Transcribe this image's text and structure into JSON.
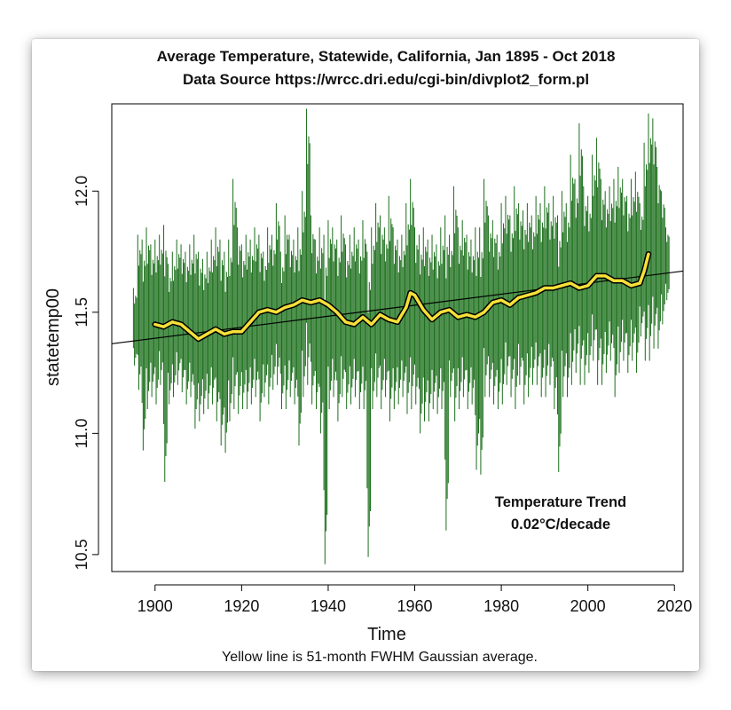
{
  "chart_data": {
    "type": "line",
    "title": "Average Temperature, Statewide, California, Jan 1895 - Oct 2018",
    "subtitle": "Data Source https://wrcc.dri.edu/cgi-bin/divplot2_form.pl",
    "xlabel": "Time",
    "ylabel": "statetemp00",
    "caption": "Yellow line is 51-month FWHM Gaussian average.",
    "xlim": [
      1890,
      2022
    ],
    "ylim": [
      10.43,
      12.36
    ],
    "x_ticks": [
      1900,
      1920,
      1940,
      1960,
      1980,
      2000,
      2020
    ],
    "x_tick_labels": [
      "1900",
      "1920",
      "1940",
      "1960",
      "1980",
      "2000",
      "2020"
    ],
    "y_ticks": [
      10.5,
      11.0,
      11.5,
      12.0
    ],
    "y_tick_labels": [
      "10.5",
      "11.0",
      "11.5",
      "12.0"
    ],
    "annotation": {
      "line1": "Temperature Trend",
      "line2": "0.02°C/decade",
      "position": "bottom-right"
    },
    "series": [
      {
        "name": "Monthly statewide temperature (range per year)",
        "color": "#1a6e1a",
        "x": [
          1895,
          1896,
          1897,
          1898,
          1899,
          1900,
          1901,
          1902,
          1903,
          1904,
          1905,
          1906,
          1907,
          1908,
          1909,
          1910,
          1911,
          1912,
          1913,
          1914,
          1915,
          1916,
          1917,
          1918,
          1919,
          1920,
          1921,
          1922,
          1923,
          1924,
          1925,
          1926,
          1927,
          1928,
          1929,
          1930,
          1931,
          1932,
          1933,
          1934,
          1935,
          1936,
          1937,
          1938,
          1939,
          1940,
          1941,
          1942,
          1943,
          1944,
          1945,
          1946,
          1947,
          1948,
          1949,
          1950,
          1951,
          1952,
          1953,
          1954,
          1955,
          1956,
          1957,
          1958,
          1959,
          1960,
          1961,
          1962,
          1963,
          1964,
          1965,
          1966,
          1967,
          1968,
          1969,
          1970,
          1971,
          1972,
          1973,
          1974,
          1975,
          1976,
          1977,
          1978,
          1979,
          1980,
          1981,
          1982,
          1983,
          1984,
          1985,
          1986,
          1987,
          1988,
          1989,
          1990,
          1991,
          1992,
          1993,
          1994,
          1995,
          1996,
          1997,
          1998,
          1999,
          2000,
          2001,
          2002,
          2003,
          2004,
          2005,
          2006,
          2007,
          2008,
          2009,
          2010,
          2011,
          2012,
          2013,
          2014,
          2015,
          2016,
          2017,
          2018
        ],
        "low": [
          11.28,
          11.18,
          10.93,
          11.1,
          11.15,
          11.12,
          11.2,
          10.8,
          11.12,
          11.15,
          11.2,
          11.17,
          11.12,
          11.15,
          11.02,
          11.05,
          11.08,
          11.1,
          11.12,
          11.05,
          10.95,
          10.92,
          11.05,
          11.1,
          11.08,
          11.1,
          11.1,
          11.12,
          11.15,
          11.05,
          11.15,
          11.12,
          11.18,
          11.2,
          11.1,
          11.1,
          11.15,
          11.12,
          10.95,
          11.15,
          11.2,
          11.12,
          11.1,
          11.0,
          10.46,
          11.1,
          11.15,
          11.05,
          11.15,
          11.1,
          11.12,
          11.15,
          11.1,
          11.1,
          10.49,
          11.1,
          11.15,
          11.1,
          11.15,
          11.05,
          11.1,
          11.12,
          11.15,
          11.08,
          11.1,
          11.12,
          11.0,
          11.05,
          11.05,
          11.1,
          11.08,
          11.1,
          10.6,
          11.15,
          11.05,
          11.1,
          11.15,
          11.1,
          11.12,
          10.85,
          10.83,
          11.15,
          11.15,
          11.12,
          11.1,
          11.12,
          11.2,
          11.15,
          11.1,
          11.2,
          11.12,
          11.15,
          11.2,
          11.2,
          11.15,
          11.15,
          11.2,
          11.1,
          10.84,
          11.15,
          11.15,
          11.2,
          11.25,
          11.2,
          11.2,
          11.25,
          11.3,
          11.2,
          11.2,
          11.25,
          11.3,
          11.15,
          11.25,
          11.3,
          11.25,
          11.3,
          11.25,
          11.4,
          11.3,
          11.3,
          11.35,
          11.35,
          11.45,
          11.55
        ],
        "high": [
          11.6,
          11.82,
          11.8,
          11.85,
          11.78,
          11.8,
          11.82,
          11.86,
          11.7,
          11.75,
          11.8,
          11.78,
          11.75,
          11.78,
          11.82,
          11.75,
          11.72,
          11.75,
          11.8,
          11.85,
          11.8,
          11.75,
          11.8,
          12.05,
          11.85,
          11.78,
          11.82,
          11.8,
          11.85,
          11.82,
          11.75,
          11.85,
          11.82,
          11.95,
          11.75,
          11.9,
          11.82,
          11.8,
          11.85,
          12.0,
          12.34,
          11.9,
          11.8,
          11.85,
          11.82,
          11.88,
          11.85,
          11.8,
          11.9,
          11.78,
          11.82,
          11.85,
          11.8,
          11.88,
          11.75,
          11.85,
          11.95,
          11.9,
          11.85,
          11.98,
          11.85,
          11.8,
          11.82,
          11.95,
          12.05,
          11.85,
          11.82,
          11.85,
          11.8,
          11.82,
          11.78,
          11.85,
          11.9,
          11.82,
          12.02,
          11.85,
          11.88,
          11.82,
          11.8,
          11.85,
          11.85,
          12.05,
          11.9,
          11.88,
          11.82,
          11.95,
          11.98,
          11.9,
          12.02,
          11.95,
          11.92,
          11.95,
          11.9,
          11.98,
          11.95,
          12.02,
          11.95,
          11.98,
          11.9,
          12.0,
          11.95,
          12.15,
          12.05,
          12.28,
          12.02,
          11.98,
          12.15,
          12.22,
          12.05,
          12.0,
          12.02,
          12.05,
          12.1,
          12.05,
          11.98,
          12.05,
          12.08,
          11.95,
          12.2,
          12.32,
          12.3,
          12.1,
          12.0,
          11.85
        ]
      },
      {
        "name": "51-month FWHM Gaussian average",
        "color": "#f5e03a",
        "x": [
          1900,
          1902,
          1904,
          1906,
          1908,
          1910,
          1912,
          1914,
          1916,
          1918,
          1920,
          1922,
          1924,
          1926,
          1928,
          1930,
          1932,
          1934,
          1936,
          1938,
          1940,
          1942,
          1944,
          1946,
          1948,
          1950,
          1952,
          1954,
          1956,
          1958,
          1959,
          1960,
          1962,
          1964,
          1966,
          1968,
          1970,
          1972,
          1974,
          1976,
          1978,
          1980,
          1982,
          1984,
          1986,
          1988,
          1990,
          1992,
          1994,
          1996,
          1998,
          2000,
          2002,
          2004,
          2006,
          2008,
          2010,
          2012,
          2013,
          2014
        ],
        "values": [
          11.45,
          11.44,
          11.46,
          11.45,
          11.42,
          11.39,
          11.41,
          11.43,
          11.41,
          11.42,
          11.42,
          11.46,
          11.5,
          11.51,
          11.5,
          11.52,
          11.53,
          11.55,
          11.54,
          11.55,
          11.53,
          11.5,
          11.46,
          11.45,
          11.48,
          11.45,
          11.49,
          11.47,
          11.46,
          11.52,
          11.58,
          11.57,
          11.51,
          11.47,
          11.5,
          11.51,
          11.48,
          11.49,
          11.48,
          11.5,
          11.54,
          11.55,
          11.53,
          11.56,
          11.57,
          11.58,
          11.6,
          11.6,
          11.61,
          11.62,
          11.6,
          11.61,
          11.65,
          11.65,
          11.63,
          11.63,
          11.61,
          11.62,
          11.67,
          11.74
        ]
      },
      {
        "name": "Linear trend",
        "color": "#000000",
        "x": [
          1890,
          2022
        ],
        "values": [
          11.37,
          11.67
        ]
      }
    ]
  }
}
